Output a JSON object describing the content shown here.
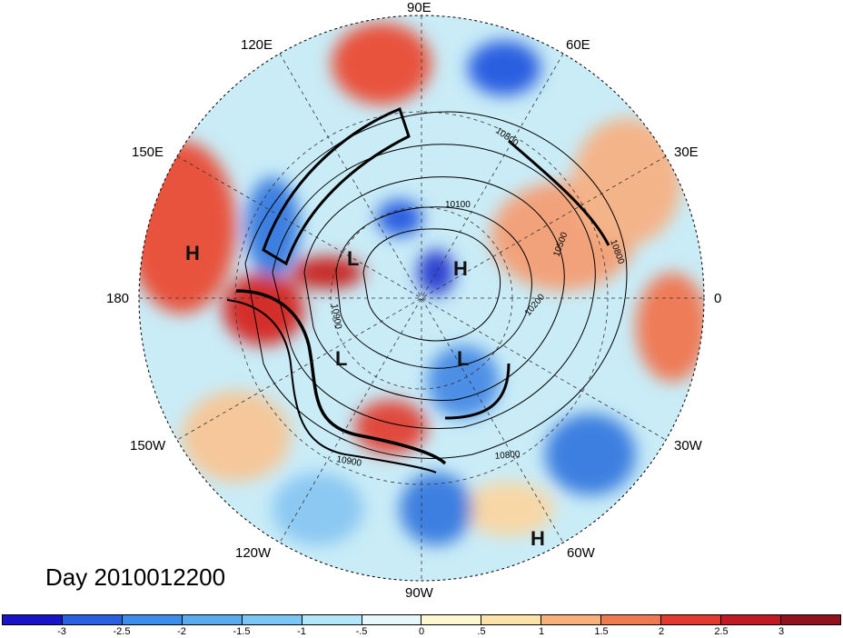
{
  "title": "Day 2010012200",
  "longitude_labels": {
    "top": "90E",
    "upper_left": "120E",
    "upper_right": "60E",
    "left_upper": "150E",
    "right_upper": "30E",
    "left": "180",
    "right": "0",
    "left_lower": "150W",
    "right_lower": "30W",
    "lower_left": "120W",
    "lower_right": "60W",
    "bottom": "90W"
  },
  "pressure_centers": [
    {
      "label": "H",
      "name": "high-north-pacific"
    },
    {
      "label": "L",
      "name": "low-arctic-upper"
    },
    {
      "label": "H",
      "name": "high-arctic"
    },
    {
      "label": "L",
      "name": "low-canada-west"
    },
    {
      "label": "L",
      "name": "low-canada-east"
    },
    {
      "label": "H",
      "name": "high-atlantic"
    }
  ],
  "contour_labels": [
    "10800",
    "10100",
    "10500",
    "10900",
    "10800",
    "10200",
    "10900",
    "10800"
  ],
  "colorbar": {
    "ticks": [
      "-3",
      "-2.5",
      "-2",
      "-1.5",
      "-1",
      "-.5",
      "0",
      ".5",
      "1",
      "1.5",
      "2",
      "2.5",
      "3"
    ],
    "colors": [
      "#1a14c8",
      "#2a5fe0",
      "#3c8ee8",
      "#5aaaf0",
      "#7cc6f6",
      "#b4e6fa",
      "#e6f8fc",
      "#fdf7d2",
      "#fbe2a8",
      "#f7b27c",
      "#ef7a52",
      "#e23a30",
      "#c01a22",
      "#90121c"
    ]
  },
  "colors": {
    "warm": "#e8533e",
    "cold": "#3c7fe0",
    "contour": "#000000"
  }
}
